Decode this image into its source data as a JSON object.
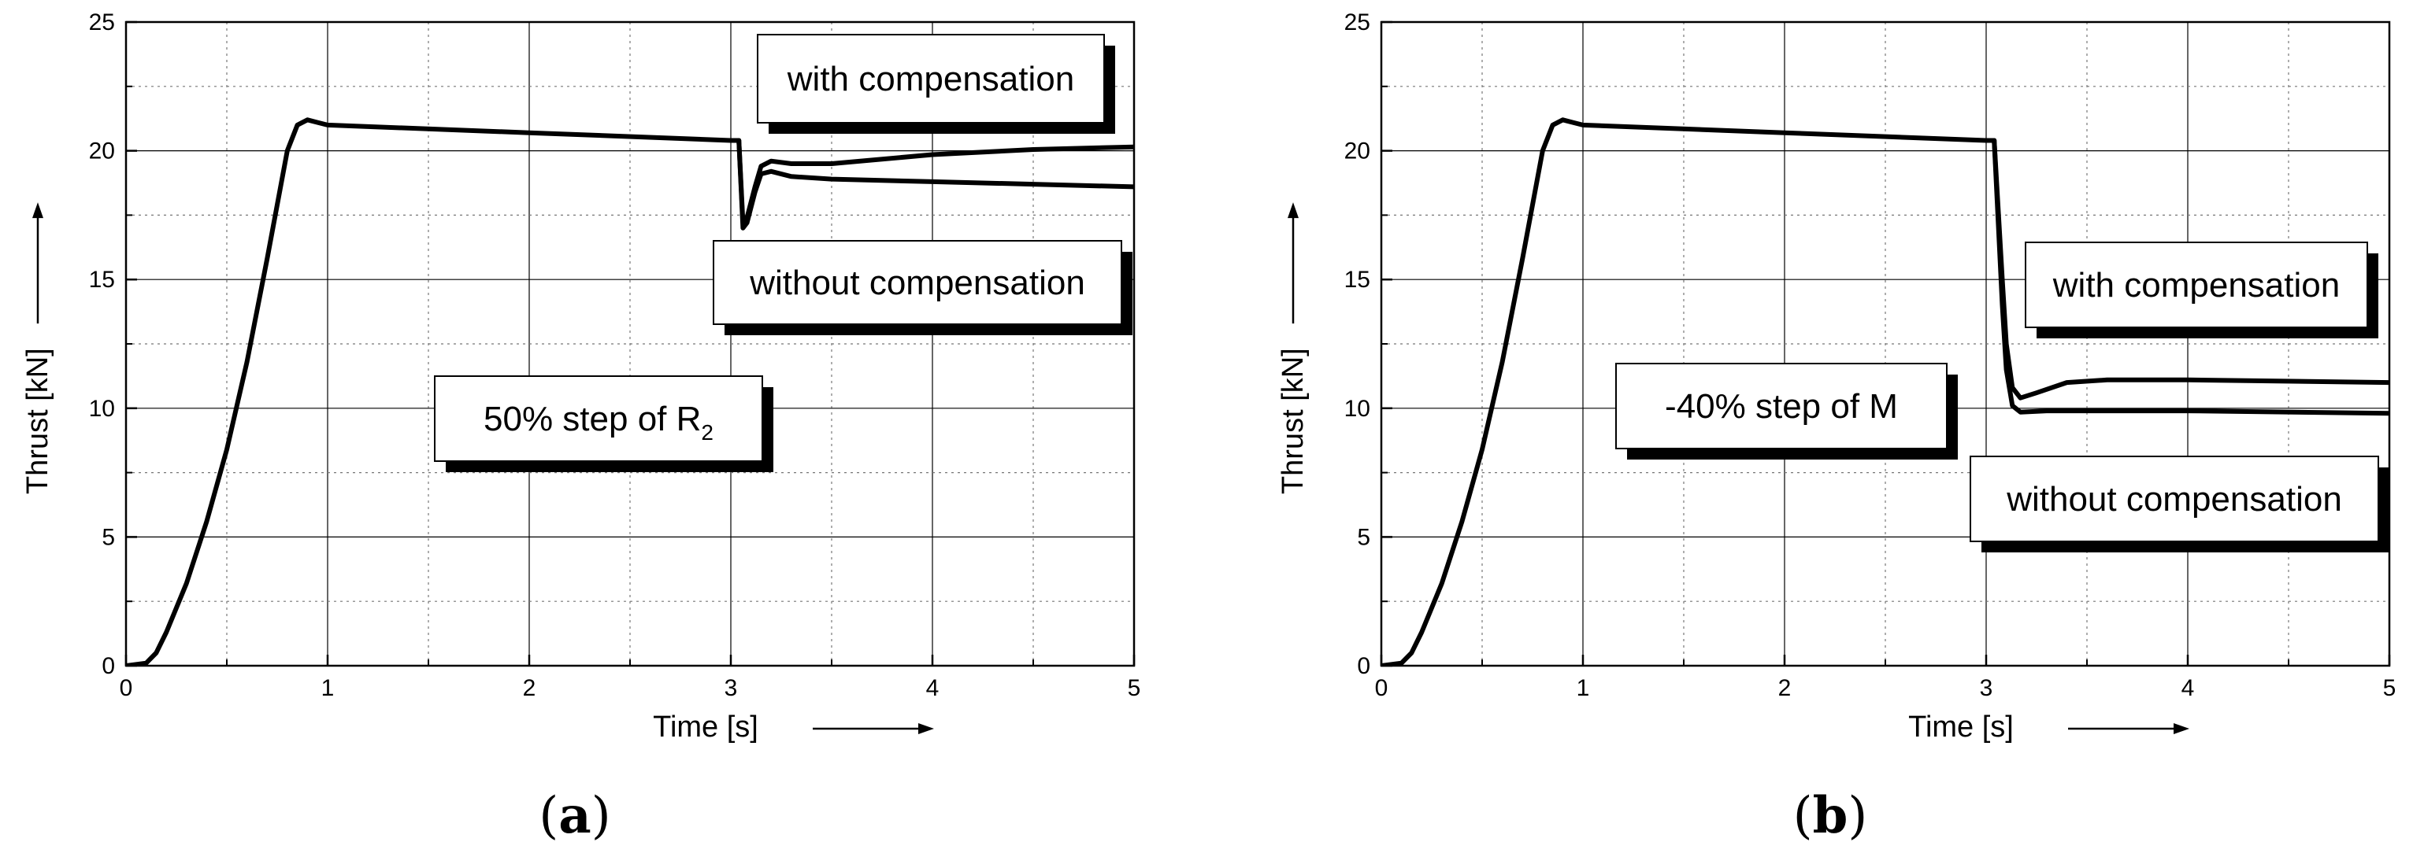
{
  "chart_data": [
    {
      "panel": "(a)",
      "panel_parts": {
        "open": "(",
        "letter": "a",
        "close": ")"
      },
      "type": "line",
      "xlabel": "Time [s]",
      "ylabel": "Thrust [kN]",
      "xlim": [
        0,
        5
      ],
      "ylim": [
        0,
        25
      ],
      "x_ticks": [
        0,
        1,
        2,
        3,
        4,
        5
      ],
      "y_ticks": [
        0,
        5,
        10,
        15,
        20,
        25
      ],
      "x_tick_labels": [
        "0",
        "1",
        "2",
        "3",
        "4",
        "5"
      ],
      "y_tick_labels": [
        "0",
        "5",
        "10",
        "15",
        "20",
        "25"
      ],
      "grid": true,
      "annotations": [
        {
          "id": "with",
          "text": "with compensation",
          "anchor": "top-right"
        },
        {
          "id": "without",
          "text": "without compensation",
          "anchor": "upper-right"
        },
        {
          "id": "step",
          "text": "50% step of R",
          "subscript": "2",
          "anchor": "center-left"
        }
      ],
      "series": [
        {
          "id": "common",
          "points": [
            [
              0,
              0
            ],
            [
              0.1,
              0.1
            ],
            [
              0.15,
              0.5
            ],
            [
              0.2,
              1.3
            ],
            [
              0.3,
              3.2
            ],
            [
              0.4,
              5.6
            ],
            [
              0.5,
              8.4
            ],
            [
              0.6,
              11.8
            ],
            [
              0.7,
              15.8
            ],
            [
              0.8,
              20.0
            ],
            [
              0.85,
              21.0
            ],
            [
              0.9,
              21.2
            ],
            [
              0.95,
              21.1
            ],
            [
              1.0,
              21.0
            ],
            [
              2.0,
              20.7
            ],
            [
              3.0,
              20.4
            ],
            [
              3.04,
              20.4
            ]
          ]
        },
        {
          "id": "with-compensation",
          "points": [
            [
              3.04,
              20.4
            ],
            [
              3.06,
              17.2
            ],
            [
              3.08,
              17.4
            ],
            [
              3.12,
              18.6
            ],
            [
              3.15,
              19.4
            ],
            [
              3.2,
              19.6
            ],
            [
              3.3,
              19.5
            ],
            [
              3.5,
              19.5
            ],
            [
              4.0,
              19.85
            ],
            [
              4.5,
              20.05
            ],
            [
              5.0,
              20.15
            ]
          ]
        },
        {
          "id": "without-compensation",
          "points": [
            [
              3.04,
              20.4
            ],
            [
              3.06,
              17.0
            ],
            [
              3.08,
              17.2
            ],
            [
              3.12,
              18.4
            ],
            [
              3.15,
              19.1
            ],
            [
              3.2,
              19.2
            ],
            [
              3.3,
              19.0
            ],
            [
              3.5,
              18.9
            ],
            [
              4.0,
              18.8
            ],
            [
              4.5,
              18.7
            ],
            [
              5.0,
              18.6
            ]
          ]
        }
      ]
    },
    {
      "panel": "(b)",
      "panel_parts": {
        "open": "(",
        "letter": "b",
        "close": ")"
      },
      "type": "line",
      "xlabel": "Time [s]",
      "ylabel": "Thrust [kN]",
      "xlim": [
        0,
        5
      ],
      "ylim": [
        0,
        25
      ],
      "x_ticks": [
        0,
        1,
        2,
        3,
        4,
        5
      ],
      "y_ticks": [
        0,
        5,
        10,
        15,
        20,
        25
      ],
      "x_tick_labels": [
        "0",
        "1",
        "2",
        "3",
        "4",
        "5"
      ],
      "y_tick_labels": [
        "0",
        "5",
        "10",
        "15",
        "20",
        "25"
      ],
      "grid": true,
      "annotations": [
        {
          "id": "with",
          "text": "with compensation",
          "anchor": "upper-right"
        },
        {
          "id": "without",
          "text": "without compensation",
          "anchor": "lower-right"
        },
        {
          "id": "step",
          "text": "-40% step of M",
          "anchor": "center"
        }
      ],
      "series": [
        {
          "id": "common",
          "points": [
            [
              0,
              0
            ],
            [
              0.1,
              0.1
            ],
            [
              0.15,
              0.5
            ],
            [
              0.2,
              1.3
            ],
            [
              0.3,
              3.2
            ],
            [
              0.4,
              5.6
            ],
            [
              0.5,
              8.4
            ],
            [
              0.6,
              11.8
            ],
            [
              0.7,
              15.8
            ],
            [
              0.8,
              20.0
            ],
            [
              0.85,
              21.0
            ],
            [
              0.9,
              21.2
            ],
            [
              0.95,
              21.1
            ],
            [
              1.0,
              21.0
            ],
            [
              2.0,
              20.7
            ],
            [
              3.0,
              20.4
            ],
            [
              3.04,
              20.4
            ]
          ]
        },
        {
          "id": "with-compensation",
          "points": [
            [
              3.04,
              20.4
            ],
            [
              3.08,
              15.0
            ],
            [
              3.1,
              12.5
            ],
            [
              3.13,
              10.8
            ],
            [
              3.17,
              10.4
            ],
            [
              3.25,
              10.6
            ],
            [
              3.4,
              11.0
            ],
            [
              3.6,
              11.1
            ],
            [
              4.0,
              11.1
            ],
            [
              5.0,
              11.0
            ]
          ]
        },
        {
          "id": "without-compensation",
          "points": [
            [
              3.04,
              20.4
            ],
            [
              3.08,
              14.0
            ],
            [
              3.1,
              11.5
            ],
            [
              3.13,
              10.1
            ],
            [
              3.17,
              9.85
            ],
            [
              3.3,
              9.9
            ],
            [
              3.6,
              9.9
            ],
            [
              4.0,
              9.9
            ],
            [
              5.0,
              9.8
            ]
          ]
        }
      ]
    }
  ]
}
